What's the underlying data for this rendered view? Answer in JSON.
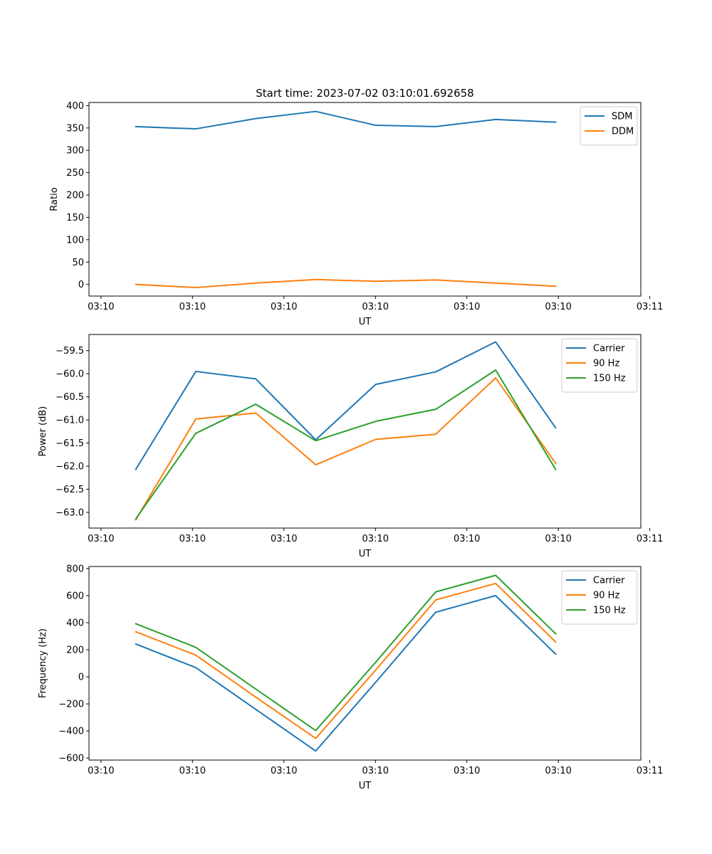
{
  "figure_title": "Start time: 2023-07-02 03:10:01.692658",
  "colors": {
    "c1": "#1f77b4",
    "c2": "#ff7f0e",
    "c3": "#2ca02c"
  },
  "chart_data": [
    {
      "type": "line",
      "title": "Start time: 2023-07-02 03:10:01.692658",
      "xlabel": "UT",
      "ylabel": "Ratio",
      "x": [
        1,
        2,
        3,
        4,
        5,
        6,
        7,
        8
      ],
      "xlim": [
        0.22,
        9.42
      ],
      "ylim": [
        -26,
        407
      ],
      "xticks": [
        0.42,
        1.945,
        3.47,
        4.995,
        6.52,
        8.045,
        9.57
      ],
      "xtick_labels": [
        "03:10",
        "03:10",
        "03:10",
        "03:10",
        "03:10",
        "03:10",
        "03:11"
      ],
      "yticks": [
        0,
        50,
        100,
        150,
        200,
        250,
        300,
        350,
        400
      ],
      "ytick_labels": [
        "0",
        "50",
        "100",
        "150",
        "200",
        "250",
        "300",
        "350",
        "400"
      ],
      "legend_position": "top-right",
      "series": [
        {
          "name": "SDM",
          "color": "#1f77b4",
          "values": [
            353,
            348,
            371,
            387,
            356,
            353,
            369,
            363
          ]
        },
        {
          "name": "DDM",
          "color": "#ff7f0e",
          "values": [
            0,
            -7,
            3,
            11,
            7,
            10,
            3,
            -4
          ]
        }
      ]
    },
    {
      "type": "line",
      "title": "",
      "xlabel": "UT",
      "ylabel": "Power (dB)",
      "x": [
        1,
        2,
        3,
        4,
        5,
        6,
        7,
        8
      ],
      "xlim": [
        0.22,
        9.42
      ],
      "ylim": [
        -63.34,
        -59.15
      ],
      "xticks": [
        0.42,
        1.945,
        3.47,
        4.995,
        6.52,
        8.045,
        9.57
      ],
      "xtick_labels": [
        "03:10",
        "03:10",
        "03:10",
        "03:10",
        "03:10",
        "03:10",
        "03:11"
      ],
      "yticks": [
        -63.0,
        -62.5,
        -62.0,
        -61.5,
        -61.0,
        -60.5,
        -60.0,
        -59.5
      ],
      "ytick_labels": [
        "−63.0",
        "−62.5",
        "−62.0",
        "−61.5",
        "−61.0",
        "−60.5",
        "−60.0",
        "−59.5"
      ],
      "legend_position": "top-right",
      "series": [
        {
          "name": "Carrier",
          "color": "#1f77b4",
          "values": [
            -62.07,
            -59.95,
            -60.11,
            -61.43,
            -60.23,
            -59.96,
            -59.31,
            -61.17
          ]
        },
        {
          "name": "90 Hz",
          "color": "#ff7f0e",
          "values": [
            -63.16,
            -60.98,
            -60.85,
            -61.97,
            -61.42,
            -61.31,
            -60.09,
            -61.94
          ]
        },
        {
          "name": "150 Hz",
          "color": "#2ca02c",
          "values": [
            -63.14,
            -61.29,
            -60.66,
            -61.45,
            -61.03,
            -60.77,
            -59.92,
            -62.07
          ]
        }
      ]
    },
    {
      "type": "line",
      "title": "",
      "xlabel": "UT",
      "ylabel": "Frequency (Hz)",
      "x": [
        1,
        2,
        3,
        4,
        5,
        6,
        7,
        8
      ],
      "xlim": [
        0.22,
        9.42
      ],
      "ylim": [
        -615,
        815
      ],
      "xticks": [
        0.42,
        1.945,
        3.47,
        4.995,
        6.52,
        8.045,
        9.57
      ],
      "xtick_labels": [
        "03:10",
        "03:10",
        "03:10",
        "03:10",
        "03:10",
        "03:10",
        "03:11"
      ],
      "yticks": [
        -600,
        -400,
        -200,
        0,
        200,
        400,
        600,
        800
      ],
      "ytick_labels": [
        "−600",
        "−400",
        "−200",
        "0",
        "200",
        "400",
        "600",
        "800"
      ],
      "legend_position": "top-right",
      "series": [
        {
          "name": "Carrier",
          "color": "#1f77b4",
          "values": [
            242,
            68,
            -240,
            -548,
            -40,
            477,
            600,
            168
          ]
        },
        {
          "name": "90 Hz",
          "color": "#ff7f0e",
          "values": [
            333,
            160,
            -150,
            -455,
            50,
            568,
            690,
            258
          ]
        },
        {
          "name": "150 Hz",
          "color": "#2ca02c",
          "values": [
            392,
            218,
            -90,
            -397,
            108,
            627,
            750,
            318
          ]
        }
      ]
    }
  ]
}
